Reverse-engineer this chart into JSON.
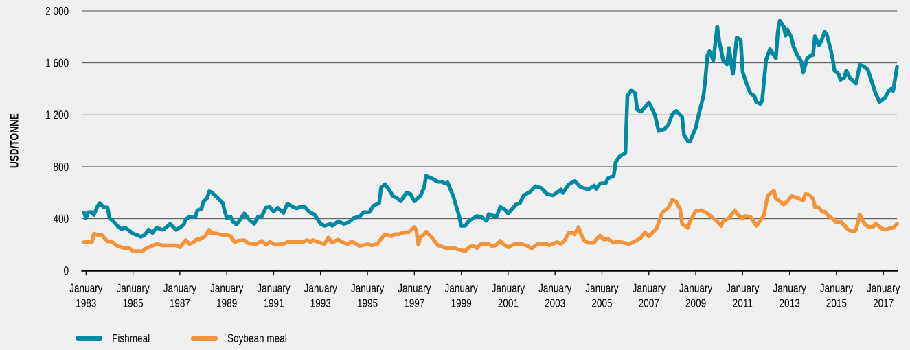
{
  "chart_data": {
    "type": "line",
    "ylabel": "USD/TONNE",
    "xlim": [
      "1982-11",
      "2017-08"
    ],
    "ylim": [
      0,
      2000
    ],
    "xticks": [
      {
        "value": "1983-01",
        "label": "January 1983"
      },
      {
        "value": "1985-01",
        "label": "January 1985"
      },
      {
        "value": "1987-01",
        "label": "January 1987"
      },
      {
        "value": "1989-01",
        "label": "January 1989"
      },
      {
        "value": "1991-01",
        "label": "January 1991"
      },
      {
        "value": "1993-01",
        "label": "January 1993"
      },
      {
        "value": "1995-01",
        "label": "January 1995"
      },
      {
        "value": "1997-01",
        "label": "January 1997"
      },
      {
        "value": "1999-01",
        "label": "January 1999"
      },
      {
        "value": "2001-01",
        "label": "January 2001"
      },
      {
        "value": "2003-01",
        "label": "January 2003"
      },
      {
        "value": "2005-01",
        "label": "January 2005"
      },
      {
        "value": "2007-01",
        "label": "January 2007"
      },
      {
        "value": "2009-01",
        "label": "January 2009"
      },
      {
        "value": "2011-01",
        "label": "January 2011"
      },
      {
        "value": "2013-01",
        "label": "January 2013"
      },
      {
        "value": "2015-01",
        "label": "January 2015"
      },
      {
        "value": "2017-01",
        "label": "January 2017"
      }
    ],
    "yticks": [
      0,
      400,
      800,
      {
        "value": 1200,
        "label": "1 200"
      },
      {
        "value": 1600,
        "label": "1 600"
      },
      {
        "value": 2000,
        "label": "2 000"
      }
    ],
    "grid": "y",
    "legend": "bottom left",
    "series": [
      {
        "name": "Fishmeal",
        "color": "#0089a3",
        "x": [
          "1982-12",
          "1983-01",
          "1983-02",
          "1983-04",
          "1983-05",
          "1983-07",
          "1983-08",
          "1983-10",
          "1983-12",
          "1984-01",
          "1984-03",
          "1984-05",
          "1984-07",
          "1984-09",
          "1984-11",
          "1985-01",
          "1985-03",
          "1985-05",
          "1985-07",
          "1985-09",
          "1985-11",
          "1986-01",
          "1986-04",
          "1986-05",
          "1986-08",
          "1986-11",
          "1987-01",
          "1987-03",
          "1987-04",
          "1987-06",
          "1987-09",
          "1987-10",
          "1987-12",
          "1988-01",
          "1988-03",
          "1988-04",
          "1988-05",
          "1988-07",
          "1988-09",
          "1988-11",
          "1988-12",
          "1989-01",
          "1989-03",
          "1989-04",
          "1989-06",
          "1989-08",
          "1989-10",
          "1989-11",
          "1990-01",
          "1990-03",
          "1990-05",
          "1990-07",
          "1990-09",
          "1990-11",
          "1991-01",
          "1991-03",
          "1991-06",
          "1991-08",
          "1991-11",
          "1992-01",
          "1992-03",
          "1992-05",
          "1992-07",
          "1992-10",
          "1993-01",
          "1993-03",
          "1993-06",
          "1993-07",
          "1993-10",
          "1994-01",
          "1994-03",
          "1994-06",
          "1994-09",
          "1994-11",
          "1995-02",
          "1995-04",
          "1995-07",
          "1995-08",
          "1995-10",
          "1995-12",
          "1996-02",
          "1996-04",
          "1996-06",
          "1996-09",
          "1996-11",
          "1997-01",
          "1997-04",
          "1997-06",
          "1997-07",
          "1997-10",
          "1998-01",
          "1998-03",
          "1998-05",
          "1998-06",
          "1998-09",
          "1998-12",
          "1999-01",
          "1999-03",
          "1999-05",
          "1999-09",
          "1999-11",
          "2000-02",
          "2000-03",
          "2000-06",
          "2000-07",
          "2000-09",
          "2000-11",
          "2001-01",
          "2001-05",
          "2001-07",
          "2001-09",
          "2001-12",
          "2002-03",
          "2002-06",
          "2002-09",
          "2002-12",
          "2003-04",
          "2003-05",
          "2003-08",
          "2003-11",
          "2004-02",
          "2004-03",
          "2004-06",
          "2004-09",
          "2004-10",
          "2004-12",
          "2005-03",
          "2005-04",
          "2005-07",
          "2005-08",
          "2005-10",
          "2006-01",
          "2006-02",
          "2006-04",
          "2006-06",
          "2006-07",
          "2006-09",
          "2006-10",
          "2007-01",
          "2007-04",
          "2007-06",
          "2007-09",
          "2007-11",
          "2008-01",
          "2008-03",
          "2008-06",
          "2008-07",
          "2008-09",
          "2008-10",
          "2009-01",
          "2009-02",
          "2009-04",
          "2009-05",
          "2009-06",
          "2009-07",
          "2009-08",
          "2009-10",
          "2009-12",
          "2010-01",
          "2010-03",
          "2010-05",
          "2010-06",
          "2010-08",
          "2010-10",
          "2010-12",
          "2011-01",
          "2011-03",
          "2011-05",
          "2011-07",
          "2011-08",
          "2011-10",
          "2011-11",
          "2012-01",
          "2012-03",
          "2012-06",
          "2012-07",
          "2012-08",
          "2012-10",
          "2012-11",
          "2012-12",
          "2013-02",
          "2013-03",
          "2013-05",
          "2013-07",
          "2013-08",
          "2013-10",
          "2013-12",
          "2014-01",
          "2014-02",
          "2014-04",
          "2014-05",
          "2014-07",
          "2014-08",
          "2014-10",
          "2014-11",
          "2014-12",
          "2015-02",
          "2015-03",
          "2015-05",
          "2015-06",
          "2015-08",
          "2015-09",
          "2015-11",
          "2016-01",
          "2016-03",
          "2016-05",
          "2016-07",
          "2016-09",
          "2016-11",
          "2016-12",
          "2017-02",
          "2017-04",
          "2017-05",
          "2017-06",
          "2017-08"
        ],
        "values": [
          445,
          405,
          450,
          450,
          430,
          500,
          520,
          490,
          485,
          405,
          380,
          345,
          320,
          330,
          310,
          285,
          275,
          260,
          275,
          315,
          290,
          330,
          315,
          320,
          360,
          315,
          330,
          355,
          395,
          415,
          415,
          465,
          475,
          530,
          560,
          610,
          605,
          580,
          550,
          520,
          455,
          405,
          415,
          380,
          355,
          395,
          440,
          420,
          385,
          360,
          415,
          420,
          485,
          490,
          455,
          485,
          445,
          515,
          490,
          480,
          495,
          490,
          455,
          430,
          360,
          345,
          360,
          345,
          380,
          360,
          370,
          405,
          415,
          450,
          450,
          500,
          520,
          640,
          665,
          625,
          575,
          560,
          535,
          600,
          590,
          535,
          575,
          640,
          730,
          710,
          685,
          685,
          670,
          680,
          570,
          415,
          345,
          345,
          385,
          420,
          415,
          385,
          435,
          420,
          415,
          490,
          475,
          440,
          510,
          520,
          580,
          605,
          650,
          635,
          590,
          580,
          625,
          600,
          665,
          690,
          645,
          640,
          625,
          655,
          630,
          670,
          675,
          710,
          730,
          835,
          880,
          905,
          1345,
          1390,
          1365,
          1240,
          1225,
          1240,
          1295,
          1205,
          1075,
          1090,
          1125,
          1205,
          1230,
          1185,
          1045,
          995,
          995,
          1100,
          1170,
          1290,
          1350,
          1490,
          1660,
          1690,
          1620,
          1880,
          1770,
          1620,
          1590,
          1715,
          1515,
          1795,
          1775,
          1530,
          1440,
          1365,
          1345,
          1300,
          1285,
          1310,
          1625,
          1705,
          1635,
          1840,
          1925,
          1880,
          1810,
          1855,
          1795,
          1725,
          1660,
          1610,
          1525,
          1635,
          1660,
          1660,
          1805,
          1735,
          1760,
          1840,
          1820,
          1705,
          1635,
          1540,
          1515,
          1470,
          1485,
          1540,
          1480,
          1470,
          1440,
          1585,
          1575,
          1550,
          1460,
          1365,
          1300,
          1310,
          1335,
          1390,
          1400,
          1385,
          1570
        ]
      },
      {
        "name": "Soybean meal",
        "color": "#f3943a",
        "x": [
          "1982-12",
          "1983-04",
          "1983-05",
          "1983-07",
          "1983-09",
          "1983-12",
          "1984-02",
          "1984-05",
          "1984-08",
          "1984-11",
          "1985-01",
          "1985-04",
          "1985-06",
          "1985-08",
          "1985-10",
          "1986-01",
          "1986-04",
          "1986-11",
          "1987-01",
          "1987-04",
          "1987-06",
          "1987-08",
          "1987-10",
          "1987-11",
          "1988-02",
          "1988-04",
          "1988-05",
          "1988-08",
          "1988-11",
          "1989-01",
          "1989-03",
          "1989-05",
          "1989-07",
          "1989-10",
          "1989-12",
          "1990-04",
          "1990-07",
          "1990-09",
          "1990-11",
          "1991-02",
          "1991-06",
          "1991-08",
          "1992-04",
          "1992-06",
          "1992-08",
          "1992-09",
          "1992-11",
          "1993-03",
          "1993-05",
          "1993-07",
          "1993-10",
          "1993-12",
          "1994-03",
          "1994-05",
          "1994-09",
          "1995-01",
          "1995-03",
          "1995-06",
          "1995-08",
          "1995-10",
          "1996-01",
          "1996-03",
          "1996-05",
          "1996-08",
          "1996-10",
          "1997-01",
          "1997-02",
          "1997-03",
          "1997-04",
          "1997-06",
          "1997-07",
          "1997-10",
          "1998-01",
          "1998-05",
          "1998-09",
          "1998-11",
          "1999-03",
          "1999-05",
          "1999-07",
          "1999-09",
          "1999-11",
          "2000-03",
          "2000-05",
          "2000-07",
          "2000-09",
          "2000-10",
          "2001-01",
          "2001-04",
          "2001-08",
          "2001-11",
          "2002-01",
          "2002-04",
          "2002-09",
          "2002-10",
          "2003-02",
          "2003-04",
          "2003-06",
          "2003-08",
          "2003-10",
          "2003-11",
          "2004-01",
          "2004-02",
          "2004-04",
          "2004-06",
          "2004-09",
          "2004-10",
          "2004-12",
          "2005-02",
          "2005-04",
          "2005-07",
          "2005-09",
          "2006-03",
          "2006-07",
          "2006-09",
          "2006-11",
          "2007-01",
          "2007-04",
          "2007-05",
          "2007-07",
          "2007-08",
          "2007-11",
          "2008-01",
          "2008-03",
          "2008-05",
          "2008-06",
          "2008-09",
          "2008-10",
          "2009-01",
          "2009-04",
          "2009-07",
          "2009-09",
          "2009-12",
          "2010-02",
          "2010-03",
          "2010-06",
          "2010-09",
          "2010-10",
          "2011-01",
          "2011-02",
          "2011-05",
          "2011-08",
          "2011-10",
          "2011-12",
          "2012-01",
          "2012-02",
          "2012-05",
          "2012-06",
          "2012-08",
          "2012-10",
          "2012-12",
          "2013-02",
          "2013-06",
          "2013-08",
          "2013-09",
          "2013-11",
          "2014-01",
          "2014-02",
          "2014-04",
          "2014-06",
          "2014-07",
          "2014-09",
          "2014-11",
          "2015-01",
          "2015-03",
          "2015-05",
          "2015-07",
          "2015-10",
          "2015-11",
          "2016-01",
          "2016-02",
          "2016-04",
          "2016-06",
          "2016-08",
          "2016-09",
          "2016-12",
          "2017-02",
          "2017-04",
          "2017-06",
          "2017-08"
        ],
        "values": [
          220,
          220,
          285,
          275,
          275,
          225,
          225,
          190,
          175,
          175,
          150,
          150,
          150,
          175,
          185,
          205,
          195,
          195,
          180,
          235,
          205,
          220,
          245,
          240,
          265,
          315,
          290,
          285,
          275,
          275,
          265,
          220,
          230,
          235,
          210,
          205,
          230,
          200,
          220,
          200,
          205,
          220,
          220,
          235,
          220,
          235,
          225,
          205,
          255,
          215,
          240,
          220,
          205,
          225,
          190,
          205,
          195,
          205,
          245,
          280,
          265,
          280,
          280,
          295,
          295,
          335,
          310,
          200,
          255,
          280,
          300,
          255,
          195,
          175,
          175,
          165,
          150,
          180,
          195,
          175,
          205,
          205,
          185,
          200,
          230,
          210,
          180,
          205,
          205,
          190,
          170,
          205,
          205,
          195,
          220,
          205,
          235,
          290,
          290,
          280,
          335,
          290,
          230,
          215,
          215,
          240,
          270,
          240,
          245,
          215,
          225,
          205,
          235,
          255,
          295,
          265,
          310,
          325,
          415,
          450,
          485,
          545,
          530,
          475,
          360,
          330,
          375,
          460,
          465,
          440,
          415,
          380,
          345,
          380,
          405,
          465,
          440,
          400,
          420,
          415,
          345,
          385,
          430,
          520,
          580,
          615,
          555,
          535,
          510,
          535,
          575,
          555,
          540,
          590,
          585,
          555,
          490,
          485,
          450,
          455,
          420,
          400,
          370,
          380,
          350,
          315,
          300,
          315,
          430,
          395,
          350,
          335,
          340,
          365,
          325,
          315,
          325,
          330,
          360
        ]
      }
    ]
  }
}
